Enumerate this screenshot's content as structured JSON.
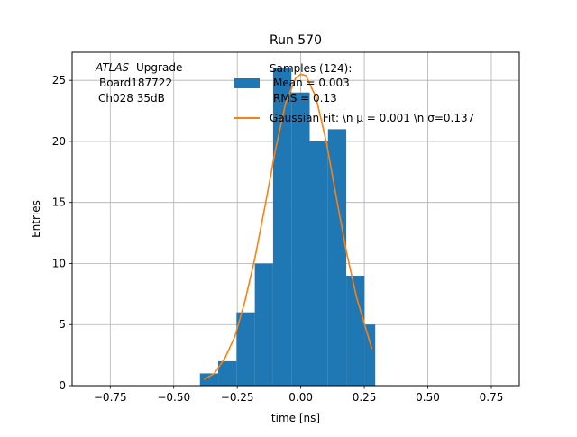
{
  "chart_data": {
    "type": "bar",
    "title": "Run 570",
    "xlabel": "time [ns]",
    "ylabel": "Entries",
    "xlim": [
      -0.9,
      0.86
    ],
    "ylim": [
      0,
      27.3
    ],
    "xticks": [
      -0.75,
      -0.5,
      -0.25,
      0.0,
      0.25,
      0.5,
      0.75
    ],
    "xtick_labels": [
      "−0.75",
      "−0.50",
      "−0.25",
      "0.00",
      "0.25",
      "0.50",
      "0.75"
    ],
    "yticks": [
      0,
      5,
      10,
      15,
      20,
      25
    ],
    "ytick_labels": [
      "0",
      "5",
      "10",
      "15",
      "20",
      "25"
    ],
    "grid": true,
    "histogram": {
      "bin_edges": [
        -0.397,
        -0.325,
        -0.253,
        -0.181,
        -0.109,
        -0.037,
        0.035,
        0.107,
        0.179,
        0.251,
        0.293
      ],
      "counts": [
        1,
        2,
        6,
        10,
        26,
        24,
        20,
        21,
        9,
        5
      ],
      "color": "#1f77b4"
    },
    "fit": {
      "color": "#ff7f0e",
      "x": [
        -0.38,
        -0.34,
        -0.3,
        -0.26,
        -0.22,
        -0.18,
        -0.14,
        -0.1,
        -0.06,
        -0.02,
        0.0,
        0.02,
        0.06,
        0.1,
        0.14,
        0.18,
        0.22,
        0.26,
        0.28
      ],
      "y": [
        0.5,
        1.0,
        2.2,
        4.0,
        6.9,
        10.5,
        14.8,
        19.3,
        23.1,
        25.2,
        25.5,
        25.4,
        23.6,
        20.0,
        15.4,
        10.9,
        7.2,
        4.4,
        3.0
      ]
    },
    "legend": {
      "position": "top-right",
      "histogram_lines": [
        "Samples (124):",
        "Mean = 0.003",
        "RMS = 0.13"
      ],
      "fit_label": "Gaussian Fit: \\n μ = 0.001 \\n σ=0.137"
    },
    "annotation": {
      "atlas": "ATLAS",
      "upgrade": "Upgrade",
      "board": "Board187722",
      "channel": "Ch028 35dB"
    }
  }
}
